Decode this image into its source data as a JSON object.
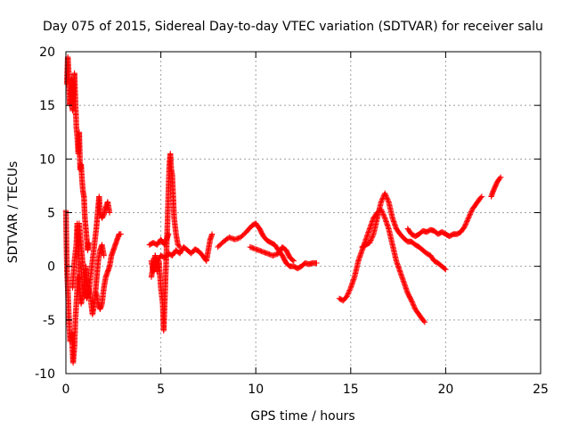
{
  "chart_data": {
    "type": "scatter",
    "title": "Day 075 of 2015, Sidereal Day-to-day VTEC variation (SDTVAR) for receiver salu",
    "xlabel": "GPS time / hours",
    "ylabel": "SDTVAR / TECUs",
    "xlim": [
      0,
      25
    ],
    "ylim": [
      -10,
      20
    ],
    "xticks": [
      0,
      5,
      10,
      15,
      20,
      25
    ],
    "yticks": [
      -10,
      -5,
      0,
      5,
      10,
      15,
      20
    ],
    "grid": true,
    "marker": "+",
    "color": "#ff0000",
    "series": [
      {
        "name": "SDTVAR",
        "segments": [
          [
            [
              0.0,
              5.2
            ],
            [
              0.03,
              2.0
            ],
            [
              0.06,
              -0.5
            ],
            [
              0.1,
              -2.0
            ],
            [
              0.15,
              -4.5
            ],
            [
              0.22,
              -7.0
            ],
            [
              0.3,
              -6.2
            ],
            [
              0.38,
              -9.0
            ],
            [
              0.45,
              -7.5
            ],
            [
              0.5,
              -5.0
            ],
            [
              0.55,
              -3.5
            ],
            [
              0.6,
              -2.0
            ],
            [
              0.65,
              -1.0
            ]
          ],
          [
            [
              0.05,
              17.0
            ],
            [
              0.1,
              19.5
            ],
            [
              0.15,
              18.0
            ],
            [
              0.2,
              15.0
            ],
            [
              0.3,
              17.5
            ],
            [
              0.35,
              14.5
            ],
            [
              0.4,
              16.0
            ],
            [
              0.45,
              18.0
            ],
            [
              0.5,
              15.5
            ],
            [
              0.55,
              13.0
            ],
            [
              0.6,
              12.0
            ],
            [
              0.65,
              10.5
            ],
            [
              0.7,
              12.5
            ],
            [
              0.75,
              9.0
            ],
            [
              0.8,
              9.5
            ],
            [
              0.85,
              8.0
            ],
            [
              0.9,
              7.0
            ],
            [
              0.95,
              6.5
            ],
            [
              1.0,
              4.5
            ],
            [
              1.05,
              3.5
            ],
            [
              1.1,
              2.5
            ],
            [
              1.15,
              1.5
            ],
            [
              1.2,
              2.2
            ]
          ],
          [
            [
              0.35,
              -2.0
            ],
            [
              0.45,
              0.5
            ],
            [
              0.55,
              2.0
            ],
            [
              0.6,
              4.0
            ],
            [
              0.65,
              2.5
            ],
            [
              0.7,
              -0.5
            ],
            [
              0.75,
              -2.5
            ],
            [
              0.8,
              -3.5
            ],
            [
              0.9,
              -2.5
            ],
            [
              1.0,
              -1.0
            ],
            [
              1.05,
              0.0
            ],
            [
              1.1,
              -1.5
            ],
            [
              1.2,
              -2.0
            ],
            [
              1.3,
              -3.0
            ],
            [
              1.4,
              -4.5
            ],
            [
              1.5,
              -3.5
            ],
            [
              1.6,
              -1.5
            ],
            [
              1.7,
              0.5
            ],
            [
              1.8,
              1.5
            ],
            [
              1.9,
              2.0
            ],
            [
              2.0,
              1.0
            ]
          ],
          [
            [
              0.7,
              4.0
            ],
            [
              0.8,
              2.0
            ],
            [
              0.9,
              0.0
            ],
            [
              1.0,
              -2.0
            ],
            [
              1.1,
              -3.0
            ],
            [
              1.2,
              -2.5
            ],
            [
              1.3,
              -1.0
            ],
            [
              1.4,
              0.5
            ],
            [
              1.5,
              2.0
            ],
            [
              1.6,
              3.5
            ],
            [
              1.7,
              5.5
            ],
            [
              1.75,
              6.5
            ],
            [
              1.8,
              5.0
            ],
            [
              1.9,
              4.5
            ],
            [
              2.0,
              4.8
            ],
            [
              2.1,
              5.5
            ],
            [
              2.2,
              6.0
            ],
            [
              2.3,
              5.0
            ]
          ],
          [
            [
              1.6,
              -2.5
            ],
            [
              1.7,
              -3.5
            ],
            [
              1.8,
              -4.0
            ],
            [
              1.9,
              -3.5
            ],
            [
              2.0,
              -2.0
            ],
            [
              2.1,
              -1.0
            ],
            [
              2.2,
              -0.5
            ],
            [
              2.3,
              0.0
            ],
            [
              2.4,
              1.0
            ],
            [
              2.5,
              1.5
            ],
            [
              2.6,
              2.0
            ],
            [
              2.7,
              2.5
            ],
            [
              2.8,
              3.0
            ],
            [
              2.9,
              3.0
            ]
          ],
          [
            [
              4.4,
              2.0
            ],
            [
              4.6,
              2.2
            ],
            [
              4.8,
              2.0
            ],
            [
              5.0,
              2.5
            ],
            [
              5.2,
              2.0
            ],
            [
              5.3,
              2.5
            ],
            [
              5.4,
              3.0
            ]
          ],
          [
            [
              4.5,
              0.5
            ],
            [
              4.6,
              -0.5
            ],
            [
              4.7,
              1.0
            ],
            [
              4.8,
              -0.5
            ],
            [
              4.9,
              0.5
            ],
            [
              5.0,
              -2.0
            ],
            [
              5.1,
              -3.5
            ],
            [
              5.15,
              -6.0
            ],
            [
              5.2,
              -3.5
            ],
            [
              5.25,
              -1.0
            ],
            [
              5.3,
              1.5
            ],
            [
              5.35,
              4.0
            ],
            [
              5.4,
              7.0
            ],
            [
              5.45,
              9.5
            ],
            [
              5.5,
              10.5
            ],
            [
              5.55,
              9.0
            ],
            [
              5.6,
              8.5
            ],
            [
              5.65,
              6.5
            ],
            [
              5.7,
              4.5
            ],
            [
              5.8,
              3.0
            ],
            [
              5.9,
              2.0
            ],
            [
              6.0,
              1.8
            ]
          ],
          [
            [
              4.5,
              -1.0
            ],
            [
              4.6,
              0.0
            ],
            [
              4.7,
              1.0
            ],
            [
              4.8,
              0.5
            ],
            [
              5.0,
              1.0
            ],
            [
              5.2,
              0.8
            ],
            [
              5.4,
              1.2
            ],
            [
              5.6,
              1.0
            ],
            [
              5.8,
              1.5
            ],
            [
              6.0,
              1.2
            ],
            [
              6.2,
              1.8
            ],
            [
              6.4,
              1.5
            ],
            [
              6.6,
              1.2
            ],
            [
              6.8,
              1.6
            ],
            [
              7.0,
              1.4
            ],
            [
              7.2,
              1.0
            ],
            [
              7.4,
              0.5
            ],
            [
              7.5,
              1.5
            ],
            [
              7.6,
              2.5
            ],
            [
              7.7,
              3.0
            ]
          ],
          [
            [
              8.0,
              1.8
            ],
            [
              8.3,
              2.3
            ],
            [
              8.6,
              2.7
            ],
            [
              8.9,
              2.5
            ],
            [
              9.2,
              2.7
            ],
            [
              9.5,
              3.2
            ],
            [
              9.8,
              3.8
            ],
            [
              10.0,
              4.0
            ],
            [
              10.2,
              3.5
            ],
            [
              10.4,
              2.8
            ],
            [
              10.6,
              2.4
            ],
            [
              10.8,
              2.2
            ],
            [
              11.0,
              2.0
            ],
            [
              11.2,
              1.5
            ],
            [
              11.4,
              1.0
            ],
            [
              11.6,
              0.3
            ],
            [
              11.8,
              0.0
            ],
            [
              12.0,
              0.0
            ],
            [
              12.2,
              -0.2
            ],
            [
              12.4,
              0.0
            ],
            [
              12.6,
              0.3
            ],
            [
              12.8,
              0.2
            ],
            [
              13.0,
              0.3
            ],
            [
              13.2,
              0.3
            ]
          ],
          [
            [
              9.7,
              1.8
            ],
            [
              10.0,
              1.6
            ],
            [
              10.3,
              1.4
            ],
            [
              10.6,
              1.2
            ],
            [
              10.9,
              1.0
            ],
            [
              11.2,
              1.2
            ],
            [
              11.4,
              1.8
            ],
            [
              11.6,
              1.5
            ],
            [
              11.8,
              0.8
            ],
            [
              12.0,
              0.5
            ]
          ],
          [
            [
              14.4,
              -3.0
            ],
            [
              14.6,
              -3.2
            ],
            [
              14.8,
              -2.8
            ],
            [
              15.0,
              -2.0
            ],
            [
              15.2,
              -1.0
            ],
            [
              15.4,
              0.5
            ],
            [
              15.6,
              1.5
            ],
            [
              15.8,
              2.5
            ],
            [
              16.0,
              3.5
            ],
            [
              16.2,
              4.5
            ],
            [
              16.4,
              5.0
            ],
            [
              16.6,
              5.3
            ],
            [
              16.8,
              4.5
            ],
            [
              17.0,
              3.5
            ],
            [
              17.2,
              2.0
            ],
            [
              17.4,
              0.5
            ],
            [
              17.6,
              -0.5
            ],
            [
              17.8,
              -1.5
            ],
            [
              18.0,
              -2.5
            ],
            [
              18.2,
              -3.2
            ],
            [
              18.4,
              -4.0
            ],
            [
              18.6,
              -4.5
            ],
            [
              18.8,
              -5.0
            ],
            [
              18.9,
              -5.2
            ]
          ],
          [
            [
              15.6,
              1.8
            ],
            [
              15.8,
              2.0
            ],
            [
              16.0,
              2.2
            ],
            [
              16.2,
              3.0
            ],
            [
              16.4,
              4.5
            ],
            [
              16.6,
              6.0
            ],
            [
              16.8,
              6.8
            ],
            [
              17.0,
              6.0
            ],
            [
              17.2,
              4.5
            ],
            [
              17.4,
              3.5
            ],
            [
              17.6,
              3.0
            ],
            [
              17.8,
              2.6
            ],
            [
              18.0,
              2.3
            ],
            [
              18.2,
              2.3
            ],
            [
              18.4,
              2.0
            ],
            [
              18.6,
              1.8
            ],
            [
              18.8,
              1.5
            ],
            [
              19.0,
              1.2
            ],
            [
              19.2,
              1.0
            ],
            [
              19.4,
              0.5
            ],
            [
              19.6,
              0.3
            ],
            [
              19.8,
              0.0
            ],
            [
              20.0,
              -0.3
            ]
          ],
          [
            [
              18.0,
              3.5
            ],
            [
              18.2,
              3.0
            ],
            [
              18.4,
              2.8
            ],
            [
              18.6,
              3.0
            ],
            [
              18.8,
              3.3
            ],
            [
              19.0,
              3.2
            ],
            [
              19.2,
              3.4
            ],
            [
              19.4,
              3.3
            ],
            [
              19.6,
              3.0
            ],
            [
              19.8,
              3.2
            ],
            [
              20.0,
              3.0
            ],
            [
              20.2,
              2.8
            ],
            [
              20.4,
              3.0
            ],
            [
              20.6,
              3.0
            ],
            [
              20.8,
              3.2
            ],
            [
              21.0,
              3.7
            ],
            [
              21.2,
              4.5
            ],
            [
              21.4,
              5.3
            ],
            [
              21.6,
              5.8
            ],
            [
              21.8,
              6.3
            ],
            [
              21.9,
              6.5
            ]
          ],
          [
            [
              22.4,
              6.5
            ],
            [
              22.5,
              7.0
            ],
            [
              22.6,
              7.4
            ],
            [
              22.7,
              7.8
            ],
            [
              22.8,
              8.1
            ],
            [
              22.9,
              8.3
            ]
          ]
        ]
      }
    ]
  }
}
